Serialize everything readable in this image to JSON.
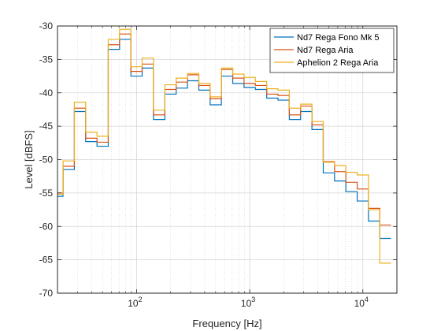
{
  "chart_data": {
    "type": "line",
    "step": true,
    "xscale": "log",
    "xlabel": "Frequency [Hz]",
    "ylabel": "Level [dBFS]",
    "xlim": [
      20,
      20000
    ],
    "ylim": [
      -70,
      -30
    ],
    "yticks": [
      -70,
      -65,
      -60,
      -55,
      -50,
      -45,
      -40,
      -35,
      -30
    ],
    "xticks": [
      {
        "value": 100,
        "base": "10",
        "exp": "2"
      },
      {
        "value": 1000,
        "base": "10",
        "exp": "3"
      },
      {
        "value": 10000,
        "base": "10",
        "exp": "4"
      }
    ],
    "grid": true,
    "minor_grid": true,
    "legend_position": "top-right",
    "edges": [
      20,
      22.4,
      28.2,
      35.5,
      44.7,
      56.2,
      70.8,
      89.1,
      112,
      141,
      178,
      224,
      282,
      355,
      447,
      562,
      708,
      891,
      1122,
      1413,
      1778,
      2239,
      2818,
      3548,
      4467,
      5623,
      7079,
      8913,
      11220,
      14125,
      17783
    ],
    "series": [
      {
        "name": "Nd7 Rega Fono Mk 5",
        "color": "#0072BD",
        "values": [
          -55.5,
          -51.5,
          -42.8,
          -47.3,
          -48.0,
          -33.5,
          -32.0,
          -37.5,
          -36.3,
          -44.0,
          -40.2,
          -39.3,
          -38.2,
          -39.6,
          -41.8,
          -37.5,
          -38.6,
          -39.2,
          -39.5,
          -40.8,
          -41.1,
          -44.0,
          -42.8,
          -45.5,
          -52.0,
          -53.2,
          -54.8,
          -56.2,
          -59.2,
          -61.8
        ]
      },
      {
        "name": "Nd7 Rega Aria",
        "color": "#D95319",
        "values": [
          -55.0,
          -51.0,
          -42.3,
          -46.8,
          -47.4,
          -32.8,
          -31.2,
          -36.8,
          -35.7,
          -43.3,
          -39.5,
          -38.4,
          -37.3,
          -38.9,
          -40.9,
          -36.5,
          -37.8,
          -38.6,
          -38.9,
          -40.2,
          -40.4,
          -43.3,
          -42.0,
          -44.8,
          -50.3,
          -51.8,
          -53.4,
          -54.4,
          -57.3,
          -59.8
        ]
      },
      {
        "name": "Aphelion 2 Rega Aria",
        "color": "#EDB120",
        "values": [
          -55.2,
          -50.2,
          -41.4,
          -45.9,
          -46.5,
          -32.0,
          -30.5,
          -36.1,
          -34.8,
          -42.6,
          -38.8,
          -37.8,
          -37.1,
          -38.6,
          -40.6,
          -36.3,
          -37.2,
          -37.7,
          -38.3,
          -39.4,
          -39.6,
          -42.3,
          -41.7,
          -44.3,
          -50.4,
          -50.9,
          -51.9,
          -52.3,
          -57.5,
          -65.5
        ]
      }
    ]
  }
}
